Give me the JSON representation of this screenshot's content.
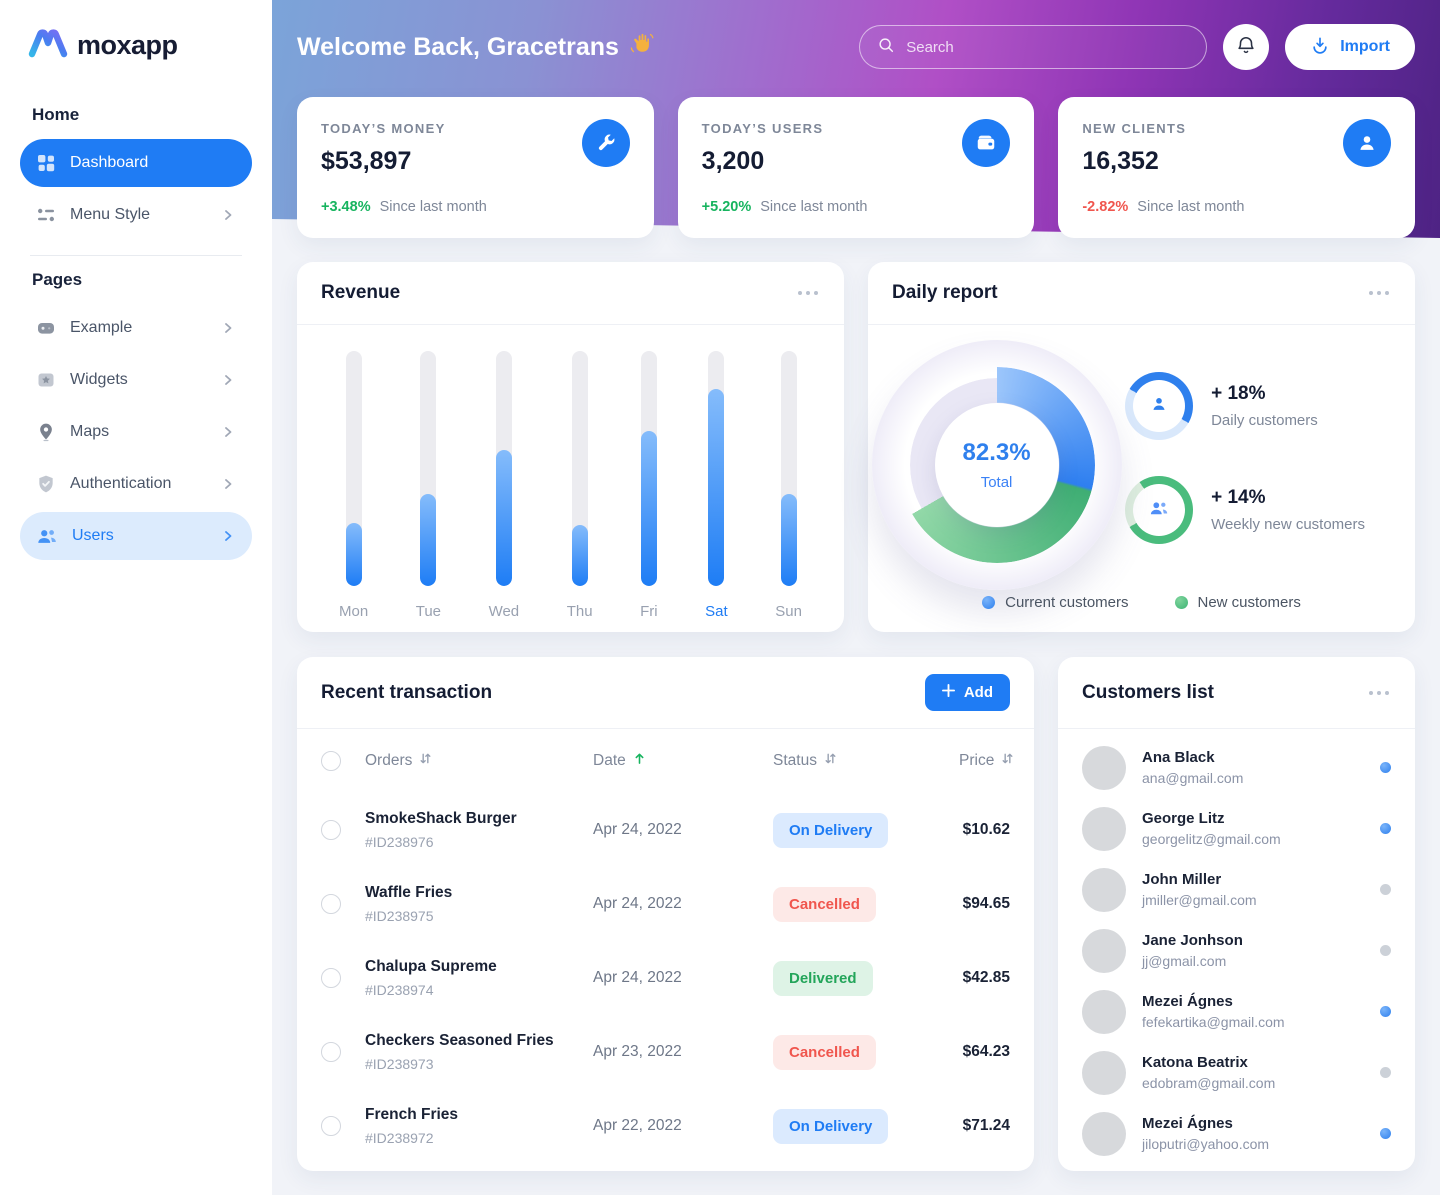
{
  "sidebar": {
    "logo_text": "moxapp",
    "sections": [
      {
        "label": "Home",
        "items": [
          {
            "label": "Dashboard",
            "active": true
          },
          {
            "label": "Menu Style"
          }
        ]
      },
      {
        "label": "Pages",
        "items": [
          {
            "label": "Example"
          },
          {
            "label": "Widgets"
          },
          {
            "label": "Maps"
          },
          {
            "label": "Authentication"
          },
          {
            "label": "Users",
            "highlighted": true
          }
        ]
      }
    ]
  },
  "header": {
    "welcome": "Welcome Back, Gracetrans",
    "search_placeholder": "Search",
    "import_label": "Import"
  },
  "stats": [
    {
      "title": "TODAY’S MONEY",
      "value": "$53,897",
      "delta": "+3.48%",
      "direction": "up",
      "caption": "Since last month",
      "icon": "wrench-icon",
      "icon_bg": "#1f7cf4"
    },
    {
      "title": "TODAY’S USERS",
      "value": "3,200",
      "delta": "+5.20%",
      "direction": "up",
      "caption": "Since last month",
      "icon": "wallet-icon",
      "icon_bg": "#1f7cf4"
    },
    {
      "title": "NEW CLIENTS",
      "value": "16,352",
      "delta": "-2.82%",
      "direction": "down",
      "caption": "Since last month",
      "icon": "person-icon",
      "icon_bg": "#1f7cf4"
    }
  ],
  "chart_data": [
    {
      "type": "bar",
      "title": "Revenue",
      "categories": [
        "Mon",
        "Tue",
        "Wed",
        "Thu",
        "Fri",
        "Sat",
        "Sun"
      ],
      "values": [
        27,
        39,
        58,
        26,
        66,
        84,
        39
      ],
      "value_unit": "percent_fill_of_track",
      "active_category": "Sat",
      "bar_gradient": [
        "#85bcfb",
        "#1e7df5"
      ],
      "track_color": "#ececf0",
      "grid": false
    },
    {
      "type": "donut",
      "title": "Daily report",
      "center_value": "82.3%",
      "center_label": "Total",
      "segments": [
        {
          "name": "Current customers",
          "start_deg": 0,
          "end_deg": 104,
          "color_from": "#9cc6fb",
          "color_to": "#2e7ff0"
        },
        {
          "name": "New customers",
          "start_deg": 106,
          "end_deg": 240,
          "color_from": "#3fae74",
          "color_to": "#92d8a8"
        },
        {
          "name": "Remainder",
          "start_deg": 240,
          "end_deg": 360,
          "color": "#e9e7f5"
        }
      ],
      "legend": [
        {
          "label": "Current customers",
          "color": "#2f80ed"
        },
        {
          "label": "New customers",
          "color": "#3eb475"
        }
      ],
      "side_stats": [
        {
          "delta": "+ 18%",
          "label": "Daily customers",
          "ring_color": "#2f80ed"
        },
        {
          "delta": "+ 14%",
          "label": "Weekly new customers",
          "ring_color": "#4abc7d"
        }
      ]
    }
  ],
  "transactions": {
    "title": "Recent transaction",
    "add_label": "Add",
    "columns": [
      "Orders",
      "Date",
      "Status",
      "Price"
    ],
    "sorted_column": "Date",
    "rows": [
      {
        "name": "SmokeShack Burger",
        "id": "#ID238976",
        "date": "Apr 24, 2022",
        "status": "On Delivery",
        "price": "$10.62"
      },
      {
        "name": "Waffle Fries",
        "id": "#ID238975",
        "date": "Apr 24, 2022",
        "status": "Cancelled",
        "price": "$94.65"
      },
      {
        "name": "Chalupa Supreme",
        "id": "#ID238974",
        "date": "Apr 24, 2022",
        "status": "Delivered",
        "price": "$42.85"
      },
      {
        "name": "Checkers Seasoned Fries",
        "id": "#ID238973",
        "date": "Apr 23, 2022",
        "status": "Cancelled",
        "price": "$64.23"
      },
      {
        "name": "French Fries",
        "id": "#ID238972",
        "date": "Apr 22, 2022",
        "status": "On Delivery",
        "price": "$71.24"
      }
    ]
  },
  "customers": {
    "title": "Customers list",
    "items": [
      {
        "name": "Ana Black",
        "email": "ana@gmail.com",
        "online": true
      },
      {
        "name": "George Litz",
        "email": "georgelitz@gmail.com",
        "online": true
      },
      {
        "name": "John Miller",
        "email": "jmiller@gmail.com",
        "online": false
      },
      {
        "name": "Jane Jonhson",
        "email": "jj@gmail.com",
        "online": false
      },
      {
        "name": "Mezei Ágnes",
        "email": "fefekartika@gmail.com",
        "online": true
      },
      {
        "name": "Katona Beatrix",
        "email": "edobram@gmail.com",
        "online": false
      },
      {
        "name": "Mezei Ágnes",
        "email": "jiloputri@yahoo.com",
        "online": true
      }
    ]
  },
  "colors": {
    "primary": "#1f7cf4",
    "green": "#17b45f",
    "red": "#f0564e"
  }
}
